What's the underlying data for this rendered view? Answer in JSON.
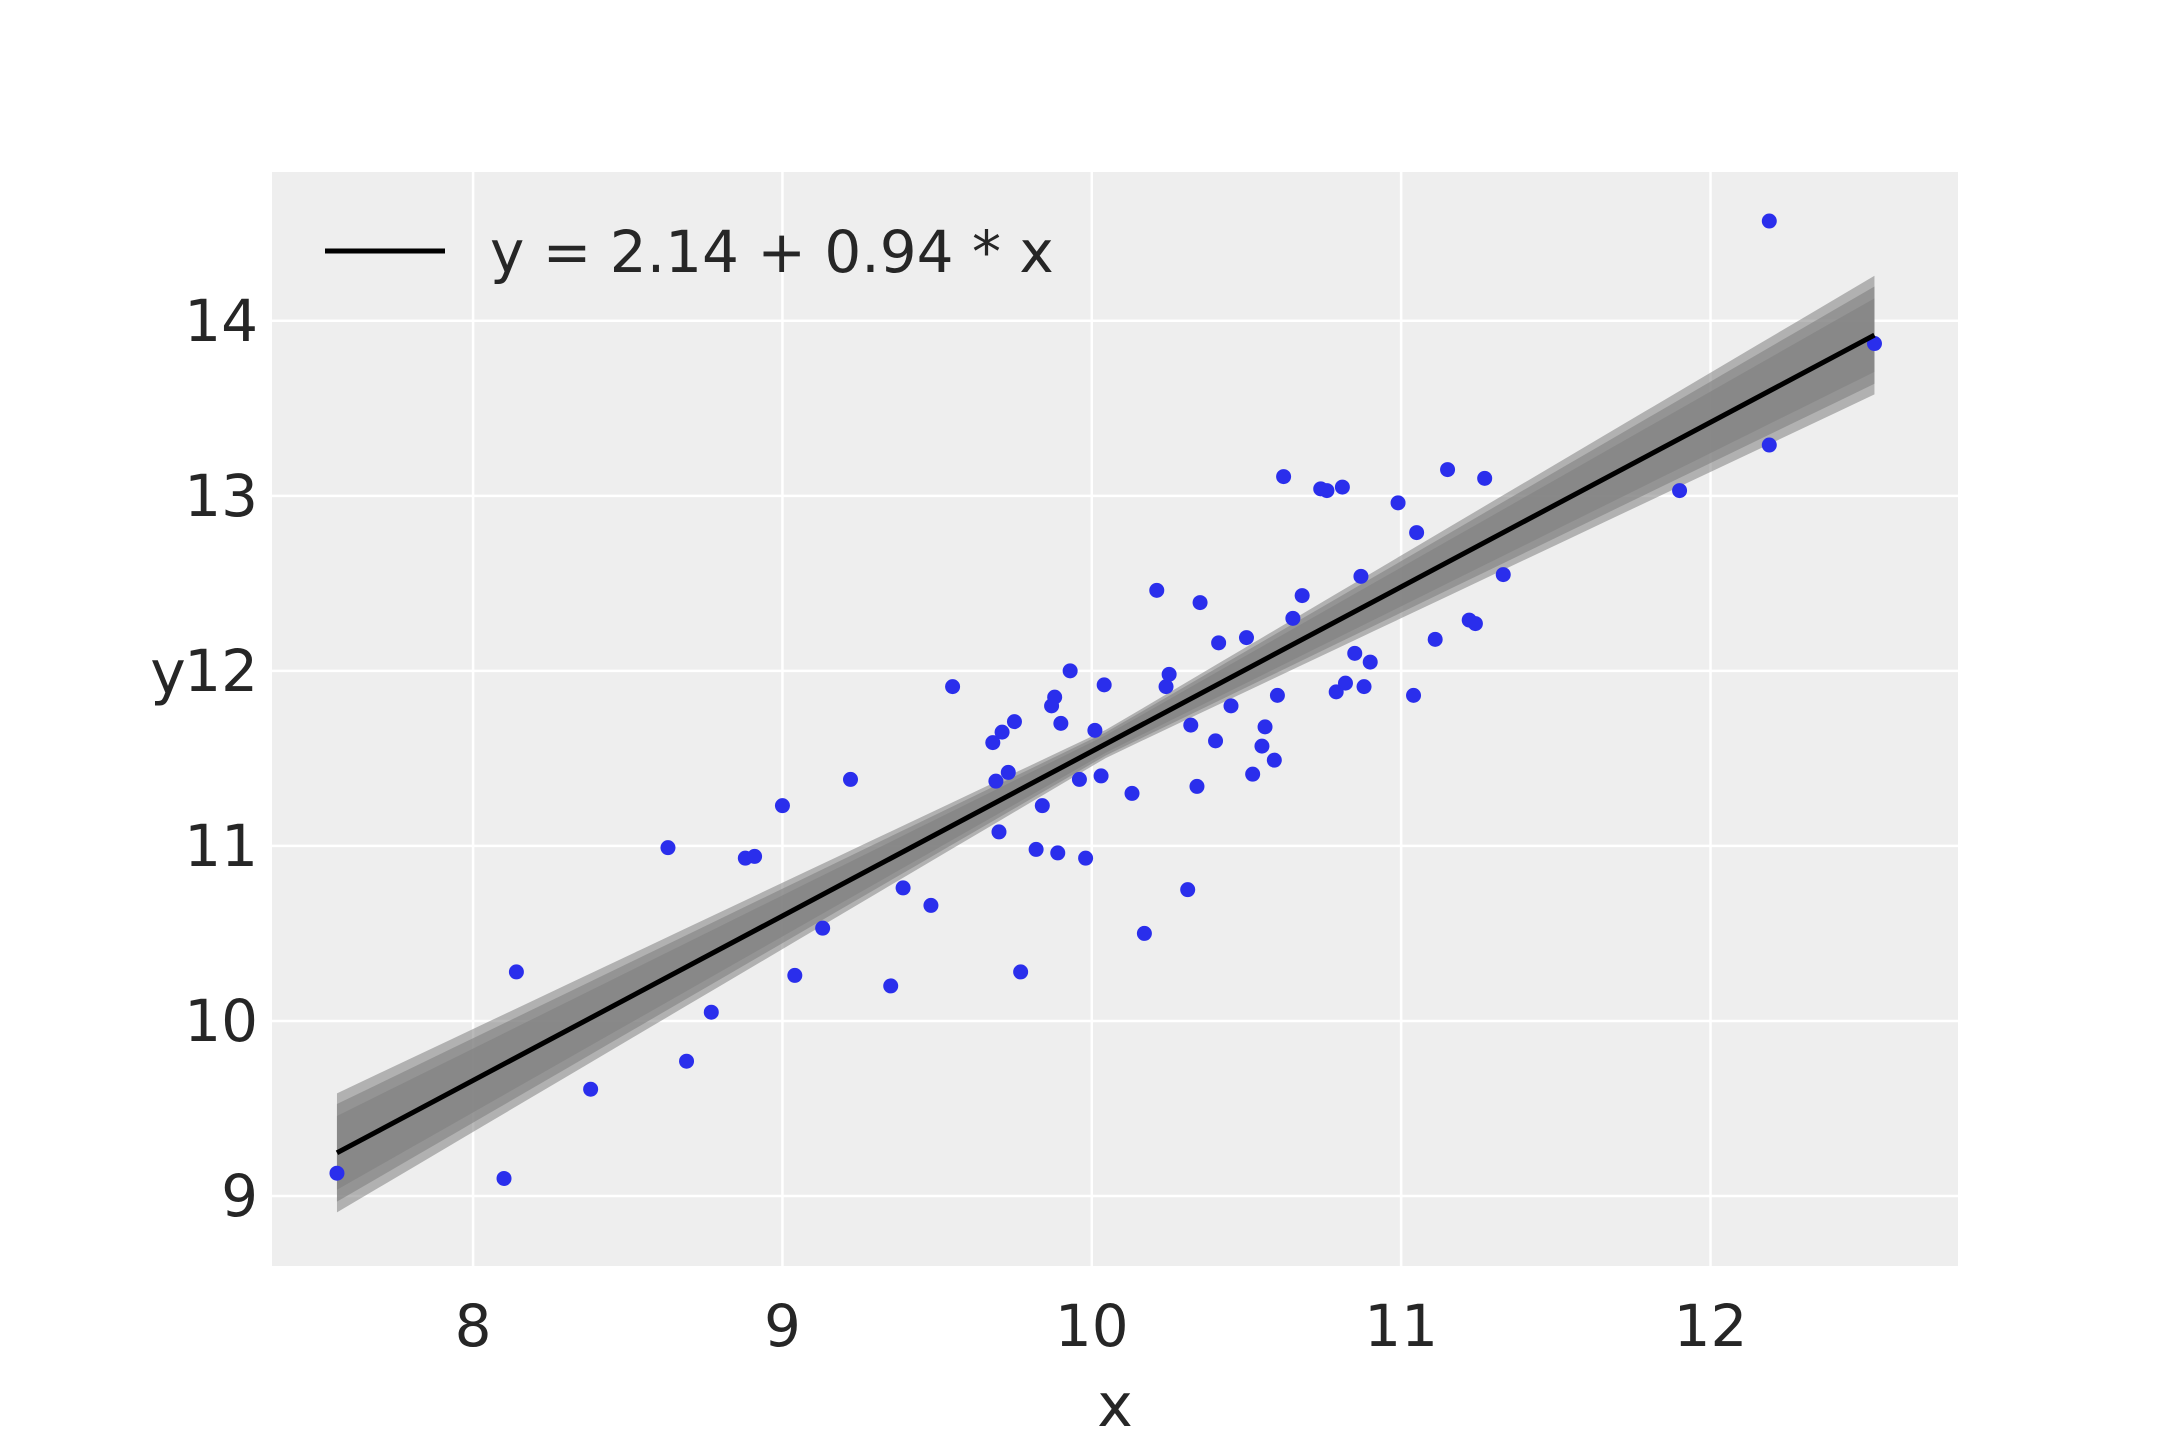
{
  "chart_data": {
    "type": "scatter",
    "title": "",
    "xlabel": "x",
    "ylabel": "y",
    "xlim": [
      7.35,
      12.8
    ],
    "ylim": [
      8.6,
      14.85
    ],
    "x_ticks": [
      8,
      9,
      10,
      11,
      12
    ],
    "y_ticks": [
      9,
      10,
      11,
      12,
      13,
      14
    ],
    "grid": true,
    "legend_position": "top-left",
    "colors": {
      "background": "#eeeeee",
      "grid": "#ffffff",
      "points": "#2a2eec",
      "band": "#808080",
      "line": "#000000",
      "text": "#262626"
    },
    "fit_line": {
      "label": "y = 2.14 + 0.94 * x",
      "intercept": 2.14,
      "slope": 0.94,
      "x_range": [
        7.56,
        12.53
      ],
      "band_half_width_at_ends": 0.34,
      "band_half_width_at_center": 0.08,
      "band_center_x": 10.05
    },
    "series": [
      {
        "type": "scatter",
        "points": [
          [
            7.56,
            9.13
          ],
          [
            8.1,
            9.1
          ],
          [
            8.14,
            10.28
          ],
          [
            8.38,
            9.61
          ],
          [
            8.63,
            10.99
          ],
          [
            8.69,
            9.77
          ],
          [
            8.77,
            10.05
          ],
          [
            8.88,
            10.93
          ],
          [
            8.91,
            10.94
          ],
          [
            9.0,
            11.23
          ],
          [
            9.04,
            10.26
          ],
          [
            9.13,
            10.53
          ],
          [
            9.22,
            11.38
          ],
          [
            9.35,
            10.2
          ],
          [
            9.39,
            10.76
          ],
          [
            9.48,
            10.66
          ],
          [
            9.55,
            11.91
          ],
          [
            9.68,
            11.59
          ],
          [
            9.69,
            11.37
          ],
          [
            9.7,
            11.08
          ],
          [
            9.71,
            11.65
          ],
          [
            9.73,
            11.42
          ],
          [
            9.75,
            11.71
          ],
          [
            9.77,
            10.28
          ],
          [
            9.82,
            10.98
          ],
          [
            9.84,
            11.23
          ],
          [
            9.87,
            11.8
          ],
          [
            9.88,
            11.85
          ],
          [
            9.89,
            10.96
          ],
          [
            9.9,
            11.7
          ],
          [
            9.93,
            12.0
          ],
          [
            9.96,
            11.38
          ],
          [
            9.98,
            10.93
          ],
          [
            10.01,
            11.66
          ],
          [
            10.03,
            11.4
          ],
          [
            10.04,
            11.92
          ],
          [
            10.13,
            11.3
          ],
          [
            10.17,
            10.5
          ],
          [
            10.21,
            12.46
          ],
          [
            10.24,
            11.91
          ],
          [
            10.25,
            11.98
          ],
          [
            10.31,
            10.75
          ],
          [
            10.32,
            11.69
          ],
          [
            10.34,
            11.34
          ],
          [
            10.35,
            12.39
          ],
          [
            10.4,
            11.6
          ],
          [
            10.41,
            12.16
          ],
          [
            10.45,
            11.8
          ],
          [
            10.5,
            12.19
          ],
          [
            10.52,
            11.41
          ],
          [
            10.55,
            11.57
          ],
          [
            10.56,
            11.68
          ],
          [
            10.59,
            11.49
          ],
          [
            10.6,
            11.86
          ],
          [
            10.62,
            13.11
          ],
          [
            10.65,
            12.3
          ],
          [
            10.68,
            12.43
          ],
          [
            10.74,
            13.04
          ],
          [
            10.76,
            13.03
          ],
          [
            10.79,
            11.88
          ],
          [
            10.81,
            13.05
          ],
          [
            10.82,
            11.93
          ],
          [
            10.85,
            12.1
          ],
          [
            10.87,
            12.54
          ],
          [
            10.88,
            11.91
          ],
          [
            10.9,
            12.05
          ],
          [
            10.99,
            12.96
          ],
          [
            11.04,
            11.86
          ],
          [
            11.05,
            12.79
          ],
          [
            11.11,
            12.18
          ],
          [
            11.15,
            13.15
          ],
          [
            11.22,
            12.29
          ],
          [
            11.24,
            12.27
          ],
          [
            11.27,
            13.1
          ],
          [
            11.33,
            12.55
          ],
          [
            11.9,
            13.03
          ],
          [
            12.19,
            14.57
          ],
          [
            12.19,
            13.29
          ],
          [
            12.53,
            13.87
          ]
        ]
      }
    ]
  }
}
